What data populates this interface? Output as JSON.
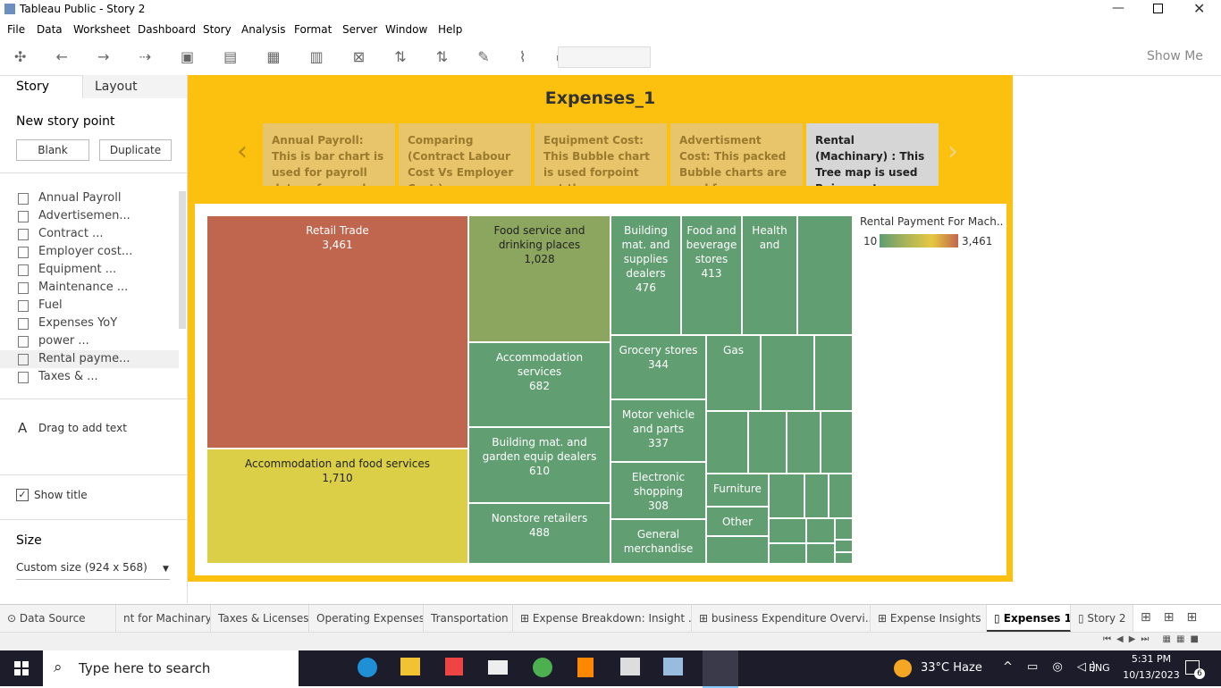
{
  "window": {
    "title": "Tableau Public - Story 2"
  },
  "menu": [
    "File",
    "Data",
    "Worksheet",
    "Dashboard",
    "Story",
    "Analysis",
    "Format",
    "Server",
    "Window",
    "Help"
  ],
  "toolbar": {
    "show_me": "Show Me"
  },
  "sidebar": {
    "tabs": [
      "Story",
      "Layout"
    ],
    "new_story_point": "New story point",
    "buttons": [
      "Blank",
      "Duplicate"
    ],
    "sheets": [
      "Annual Payroll",
      "Advertisemen...",
      "Contract ...",
      "Employer cost...",
      "Equipment ...",
      "Maintenance ...",
      "Fuel",
      "Expenses YoY",
      "power ...",
      "Rental payme...",
      "Taxes & ..."
    ],
    "drag_text": "Drag to add text",
    "show_title": "Show title",
    "size_label": "Size",
    "size_value": "Custom size (924 x 568)"
  },
  "story": {
    "title": "Expenses_1",
    "points": [
      "Annual Payroll:  This is bar chart is used for payroll datas of annual",
      "Comparing (Contract Labour Cost  Vs Employer Cost )",
      "Equipment Cost:  This Bubble chart is used forpoint out the",
      "Advertisment Cost: This packed Bubble charts are used for",
      "Rental  (Machinary) : This  Tree map is used Buisness type"
    ],
    "treemap": {
      "cells": [
        {
          "label": "Retail Trade",
          "value": 3461,
          "value_label": "3,461"
        },
        {
          "label": "Accommodation and food services",
          "value": 1710,
          "value_label": "1,710"
        },
        {
          "label": "Food service and drinking places",
          "value": 1028,
          "value_label": "1,028"
        },
        {
          "label": "Accommodation services",
          "value": 682
        },
        {
          "label": "Building mat. and garden equip dealers",
          "value": 610
        },
        {
          "label": "Nonstore retailers",
          "value": 488
        },
        {
          "label": "Building mat. and supplies dealers",
          "value": 476
        },
        {
          "label": "Food and beverage stores",
          "value": 413
        },
        {
          "label": "Health and"
        },
        {
          "label": "Grocery stores",
          "value": 344
        },
        {
          "label": "Gas"
        },
        {
          "label": "Motor vehicle and parts",
          "value": 337
        },
        {
          "label": "Electronic shopping",
          "value": 308
        },
        {
          "label": "Furniture"
        },
        {
          "label": "Other"
        },
        {
          "label": "General merchandise"
        }
      ],
      "legend": {
        "title": "Rental Payment For Mach..",
        "min": 10,
        "max": {
          "value": 3461,
          "label": "3,461"
        }
      }
    }
  },
  "sheet_tabs": [
    "Data Source",
    "nt for Machinary",
    "Taxes & Licenses",
    "Operating Expenses",
    "Transportation",
    "Expense Breakdown: Insight ...",
    "business Expenditure Overvi...",
    "Expense Insights",
    "Expenses 1",
    "Story 2"
  ],
  "taskbar": {
    "search": "Type here to search",
    "weather": "33°C  Haze",
    "lang": "ENG",
    "time": "5:31 PM",
    "date": "10/13/2023",
    "notifications": "6"
  }
}
